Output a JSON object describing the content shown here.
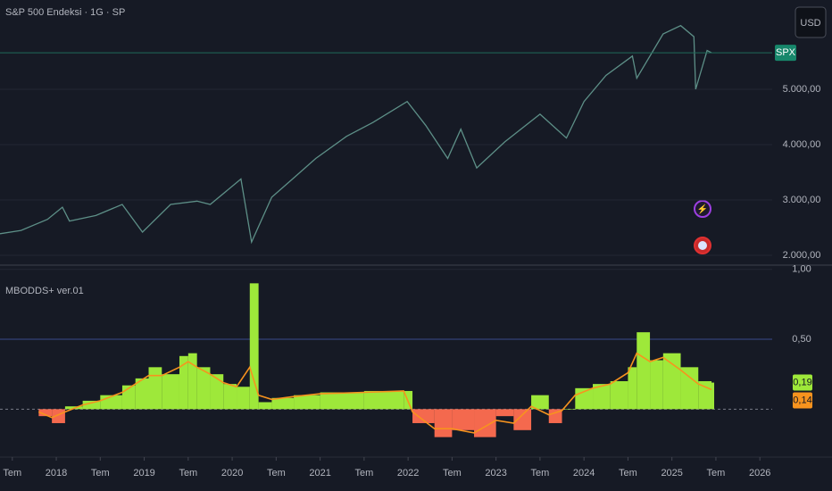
{
  "chart_data": [
    {
      "type": "line",
      "title": "S&P 500 Endeksi · 1G · SP",
      "currency": "USD",
      "symbol": "SPX",
      "color": "#5d8f87",
      "x": [
        2017.36,
        2017.6,
        2017.9,
        2018.07,
        2018.15,
        2018.45,
        2018.75,
        2018.98,
        2019.3,
        2019.6,
        2019.75,
        2020.1,
        2020.22,
        2020.45,
        2020.7,
        2020.95,
        2021.3,
        2021.6,
        2021.99,
        2022.2,
        2022.45,
        2022.6,
        2022.78,
        2023.1,
        2023.5,
        2023.8,
        2024.0,
        2024.25,
        2024.55,
        2024.6,
        2024.9,
        2025.1,
        2025.25,
        2025.27,
        2025.4,
        2025.45
      ],
      "values": [
        2390,
        2450,
        2650,
        2870,
        2620,
        2720,
        2920,
        2420,
        2920,
        2980,
        2920,
        3380,
        2240,
        3050,
        3400,
        3750,
        4150,
        4400,
        4780,
        4350,
        3750,
        4280,
        3580,
        4050,
        4550,
        4120,
        4780,
        5250,
        5600,
        5200,
        6000,
        6150,
        5950,
        5000,
        5700,
        5660
      ],
      "xlim": [
        2017.36,
        2026.14
      ],
      "ylim": [
        1823,
        6613
      ],
      "yticks": [
        {
          "value": 5000,
          "label": "5.000,00"
        },
        {
          "value": 4000,
          "label": "4.000,00"
        },
        {
          "value": 3000,
          "label": "3.000,00"
        },
        {
          "value": 2000,
          "label": "2.000,00"
        }
      ],
      "grid": true
    },
    {
      "type": "oscillator",
      "title": "MBODDS+ ver.01",
      "x": [
        2017.8,
        2017.95,
        2018.1,
        2018.3,
        2018.5,
        2018.75,
        2018.9,
        2019.05,
        2019.2,
        2019.4,
        2019.5,
        2019.6,
        2019.75,
        2019.9,
        2020.05,
        2020.2,
        2020.3,
        2020.45,
        2020.7,
        2021.0,
        2021.5,
        2021.95,
        2022.05,
        2022.3,
        2022.5,
        2022.75,
        2023.0,
        2023.2,
        2023.4,
        2023.6,
        2023.75,
        2023.9,
        2024.1,
        2024.3,
        2024.5,
        2024.6,
        2024.75,
        2024.9,
        2025.1,
        2025.3,
        2025.45
      ],
      "series": [
        {
          "kind": "histogram",
          "color": "#9ee83a",
          "negative_color": "#f4694e",
          "values": [
            -0.05,
            -0.1,
            0.02,
            0.06,
            0.1,
            0.17,
            0.22,
            0.3,
            0.25,
            0.38,
            0.4,
            0.3,
            0.25,
            0.18,
            0.16,
            0.9,
            0.05,
            0.08,
            0.1,
            0.12,
            0.13,
            0.13,
            -0.1,
            -0.2,
            -0.15,
            -0.2,
            -0.05,
            -0.15,
            0.1,
            -0.1,
            0.0,
            0.15,
            0.18,
            0.2,
            0.3,
            0.55,
            0.35,
            0.4,
            0.3,
            0.2,
            0.19
          ],
          "value_labels": [
            null,
            null,
            null,
            null,
            null,
            null,
            null,
            null,
            null,
            null,
            null,
            null,
            null,
            null,
            null,
            null,
            null,
            null,
            null,
            null,
            null,
            null,
            null,
            null,
            null,
            null,
            null,
            null,
            null,
            null,
            null,
            null,
            null,
            null,
            null,
            null,
            null,
            null,
            null,
            null,
            "0,19"
          ]
        },
        {
          "kind": "line",
          "color": "#f7931e",
          "values": [
            -0.02,
            -0.06,
            -0.02,
            0.03,
            0.06,
            0.12,
            0.18,
            0.24,
            0.24,
            0.3,
            0.34,
            0.3,
            0.25,
            0.19,
            0.16,
            0.3,
            0.1,
            0.07,
            0.09,
            0.11,
            0.12,
            0.13,
            -0.02,
            -0.14,
            -0.14,
            -0.17,
            -0.08,
            -0.1,
            0.02,
            -0.04,
            -0.01,
            0.1,
            0.15,
            0.18,
            0.26,
            0.4,
            0.34,
            0.37,
            0.28,
            0.18,
            0.14
          ],
          "value_labels": [
            null,
            null,
            null,
            null,
            null,
            null,
            null,
            null,
            null,
            null,
            null,
            null,
            null,
            null,
            null,
            null,
            null,
            null,
            null,
            null,
            null,
            null,
            null,
            null,
            null,
            null,
            null,
            null,
            null,
            null,
            null,
            null,
            null,
            null,
            null,
            null,
            null,
            null,
            null,
            null,
            "0,14"
          ]
        }
      ],
      "xlim": [
        2017.36,
        2026.14
      ],
      "ylim": [
        -0.33,
        1.03
      ],
      "yticks": [
        {
          "value": 1,
          "label": "1,00"
        },
        {
          "value": 0.5,
          "label": "0,50"
        }
      ],
      "levels": [
        0.5
      ],
      "xticks": [
        {
          "value": 2017.5,
          "label": "Tem"
        },
        2018,
        {
          "value": 2018.5,
          "label": "Tem"
        },
        2019,
        {
          "value": 2019.5,
          "label": "Tem"
        },
        2020,
        {
          "value": 2020.5,
          "label": "Tem"
        },
        2021,
        {
          "value": 2021.5,
          "label": "Tem"
        },
        2022,
        {
          "value": 2022.5,
          "label": "Tem"
        },
        2023,
        {
          "value": 2023.5,
          "label": "Tem"
        },
        2024,
        {
          "value": 2024.5,
          "label": "Tem"
        },
        2025,
        {
          "value": 2025.5,
          "label": "Tem"
        },
        2026
      ]
    }
  ]
}
